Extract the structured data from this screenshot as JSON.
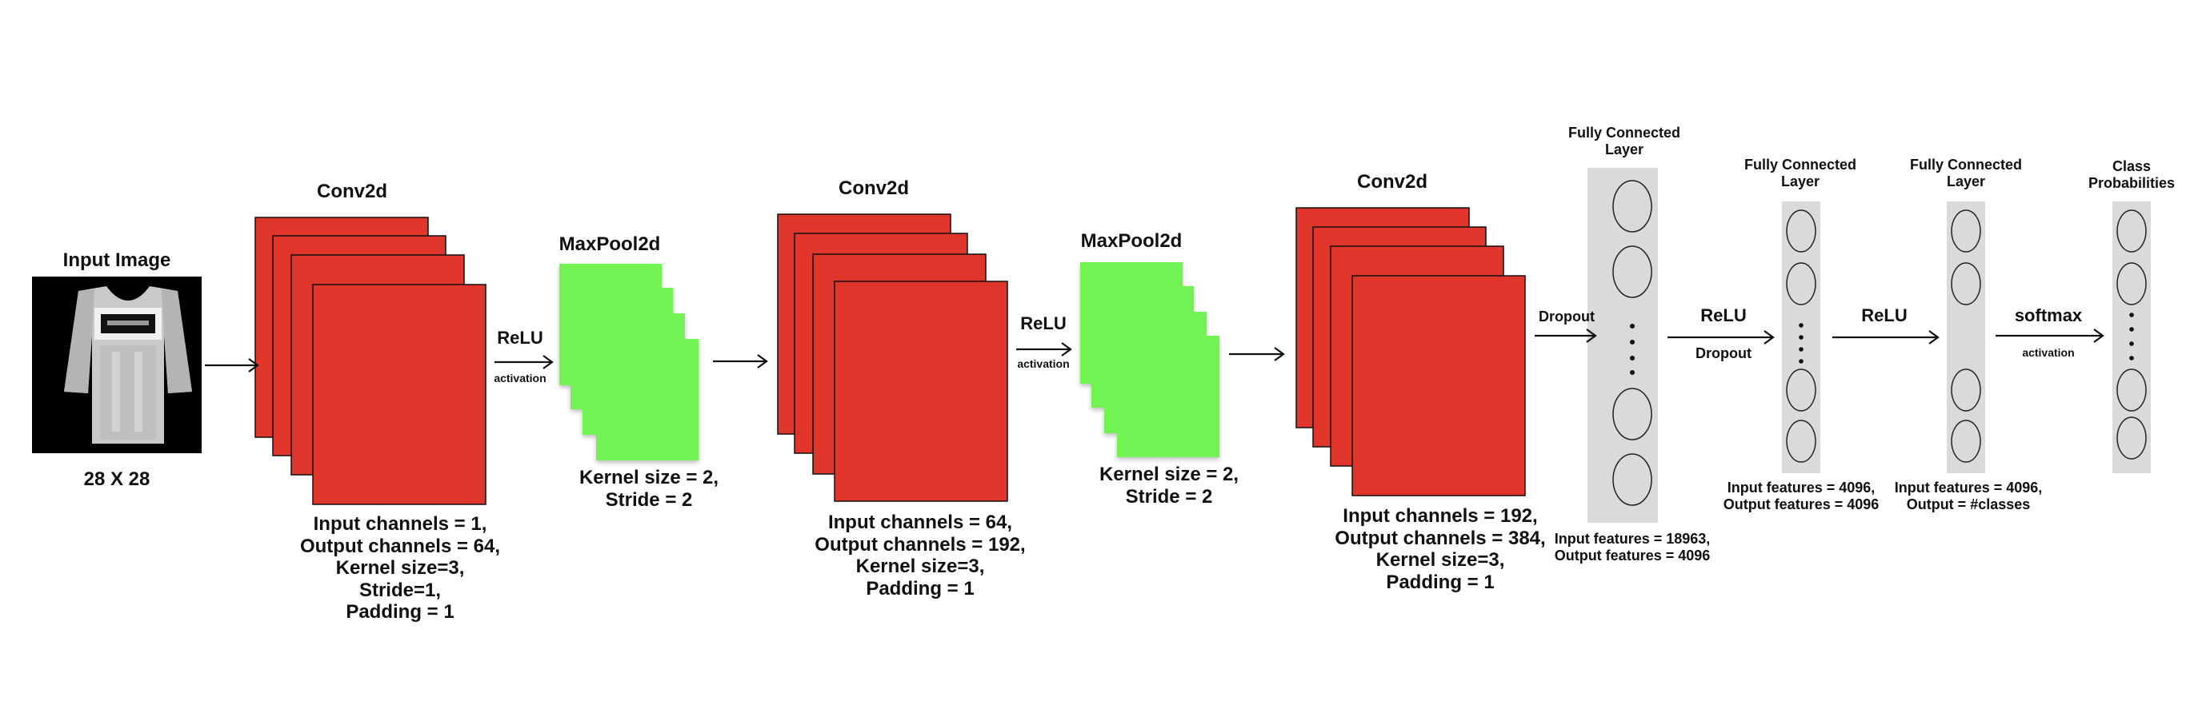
{
  "input": {
    "title": "Input Image",
    "size": "28 X 28",
    "image_icon": "tshirt-grayscale-image"
  },
  "conv1": {
    "title": "Conv2d",
    "params": "Input channels = 1,\nOutput channels = 64,\nKernel size=3,\nStride=1,\nPadding = 1"
  },
  "relu1": {
    "label": "ReLU",
    "sub": "activation"
  },
  "pool1": {
    "title": "MaxPool2d",
    "params": "Kernel size = 2,\nStride = 2"
  },
  "conv2": {
    "title": "Conv2d",
    "params": "Input channels = 64,\nOutput channels = 192,\nKernel size=3,\nPadding = 1"
  },
  "relu2": {
    "label": "ReLU",
    "sub": "activation"
  },
  "pool2": {
    "title": "MaxPool2d",
    "params": "Kernel size = 2,\nStride = 2"
  },
  "conv3": {
    "title": "Conv2d",
    "params": "Input channels = 192,\nOutput channels = 384,\nKernel size=3,\nPadding = 1"
  },
  "dropout1": {
    "label": "Dropout"
  },
  "fc1": {
    "title": "Fully Connected\nLayer",
    "params": "Input features = 18963,\nOutput features = 4096"
  },
  "relu3": {
    "label": "ReLU",
    "sub": "Dropout"
  },
  "fc2": {
    "title": "Fully Connected\nLayer",
    "params": "Input features = 4096,\nOutput features = 4096"
  },
  "relu4": {
    "label": "ReLU"
  },
  "fc3": {
    "title": "Fully Connected\nLayer",
    "params": "Input features = 4096,\nOutput = #classes"
  },
  "softmax": {
    "label": "softmax",
    "sub": "activation"
  },
  "output": {
    "title": "Class\nProbabilities"
  },
  "colors": {
    "conv": "#e0352a",
    "pool": "#72f252",
    "fc_column": "#dadada",
    "neuron_stroke": "#222222",
    "arrow": "#111111",
    "image_bg": "#000000"
  }
}
